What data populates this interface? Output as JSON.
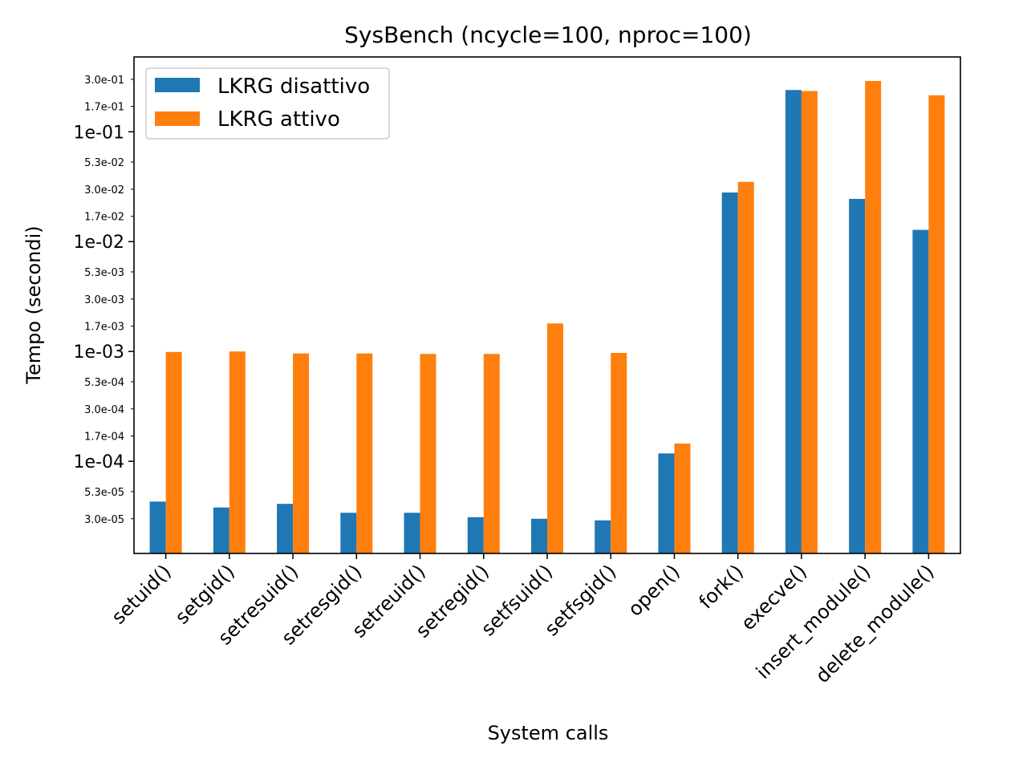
{
  "chart_data": {
    "type": "bar",
    "title": "SysBench (ncycle=100, nproc=100)",
    "xlabel": "System calls",
    "ylabel": "Tempo (secondi)",
    "yscale": "log",
    "ylim": [
      1.45e-05,
      0.48
    ],
    "grid": false,
    "legend_position": "top-left",
    "categories": [
      "setuid()",
      "setgid()",
      "setresuid()",
      "setresgid()",
      "setreuid()",
      "setregid()",
      "setfsuid()",
      "setfsgid()",
      "open()",
      "fork()",
      "execve()",
      "insert_module()",
      "delete_module()"
    ],
    "series": [
      {
        "name": "LKRG disattivo",
        "color": "#1f77b4",
        "values": [
          4.3e-05,
          3.8e-05,
          4.1e-05,
          3.4e-05,
          3.4e-05,
          3.1e-05,
          3e-05,
          2.9e-05,
          0.000118,
          0.028,
          0.24,
          0.0245,
          0.0128
        ]
      },
      {
        "name": "LKRG attivo",
        "color": "#ff7f0e",
        "values": [
          0.00099,
          0.001,
          0.00096,
          0.00096,
          0.00095,
          0.00095,
          0.0018,
          0.00097,
          0.000145,
          0.035,
          0.235,
          0.29,
          0.215
        ]
      }
    ],
    "yticks_major": [
      {
        "value": 0.0001,
        "label": "1e-04"
      },
      {
        "value": 0.001,
        "label": "1e-03"
      },
      {
        "value": 0.01,
        "label": "1e-02"
      },
      {
        "value": 0.1,
        "label": "1e-01"
      }
    ],
    "yticks_minor": [
      {
        "value": 3e-05,
        "label": "3.0e-05"
      },
      {
        "value": 5.3e-05,
        "label": "5.3e-05"
      },
      {
        "value": 0.00017,
        "label": "1.7e-04"
      },
      {
        "value": 0.0003,
        "label": "3.0e-04"
      },
      {
        "value": 0.00053,
        "label": "5.3e-04"
      },
      {
        "value": 0.0017,
        "label": "1.7e-03"
      },
      {
        "value": 0.003,
        "label": "3.0e-03"
      },
      {
        "value": 0.0053,
        "label": "5.3e-03"
      },
      {
        "value": 0.017,
        "label": "1.7e-02"
      },
      {
        "value": 0.03,
        "label": "3.0e-02"
      },
      {
        "value": 0.053,
        "label": "5.3e-02"
      },
      {
        "value": 0.17,
        "label": "1.7e-01"
      },
      {
        "value": 0.3,
        "label": "3.0e-01"
      }
    ]
  }
}
